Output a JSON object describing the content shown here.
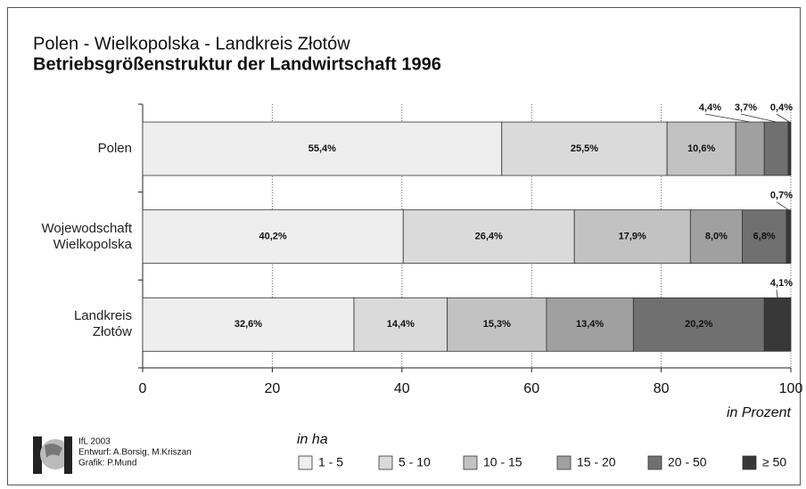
{
  "chart_data": {
    "type": "stacked-bar-horizontal",
    "title": "Polen - Wielkopolska - Landkreis Złotów",
    "subtitle": "Betriebsgrößenstruktur der Landwirtschaft 1996",
    "categories": [
      "Polen",
      "Wojewodschaft Wielkopolska",
      "Landkreis Złotów"
    ],
    "series": [
      {
        "name": "1 - 5",
        "color": "#eeeeee",
        "values": [
          55.4,
          40.2,
          32.6
        ],
        "value_labels": [
          "55,4%",
          "40,2%",
          "32,6%"
        ]
      },
      {
        "name": "5 - 10",
        "color": "#dadada",
        "values": [
          25.5,
          26.4,
          14.4
        ],
        "value_labels": [
          "25,5%",
          "26,4%",
          "14,4%"
        ]
      },
      {
        "name": "10 - 15",
        "color": "#c2c2c2",
        "values": [
          10.6,
          17.9,
          15.3
        ],
        "value_labels": [
          "10,6%",
          "17,9%",
          "15,3%"
        ]
      },
      {
        "name": "15 - 20",
        "color": "#a0a0a0",
        "values": [
          4.4,
          8.0,
          13.4
        ],
        "value_labels": [
          "4,4%",
          "8,0%",
          "13,4%"
        ]
      },
      {
        "name": "20 - 50",
        "color": "#707070",
        "values": [
          3.7,
          6.8,
          20.2
        ],
        "value_labels": [
          "3,7%",
          "6,8%",
          "20,2%"
        ]
      },
      {
        "name": "≥ 50",
        "color": "#383838",
        "values": [
          0.4,
          0.7,
          4.1
        ],
        "value_labels": [
          "0,4%",
          "0,7%",
          "4,1%"
        ]
      }
    ],
    "xlim": [
      0,
      100
    ],
    "xticks": [
      0,
      20,
      40,
      60,
      80,
      100
    ],
    "grid": true,
    "xlabel": "in Prozent",
    "legend_title": "in ha",
    "credits": [
      "IfL 2003",
      "Entwurf: A.Borsig, M.Kriszan",
      "Grafik: P.Mund"
    ]
  }
}
